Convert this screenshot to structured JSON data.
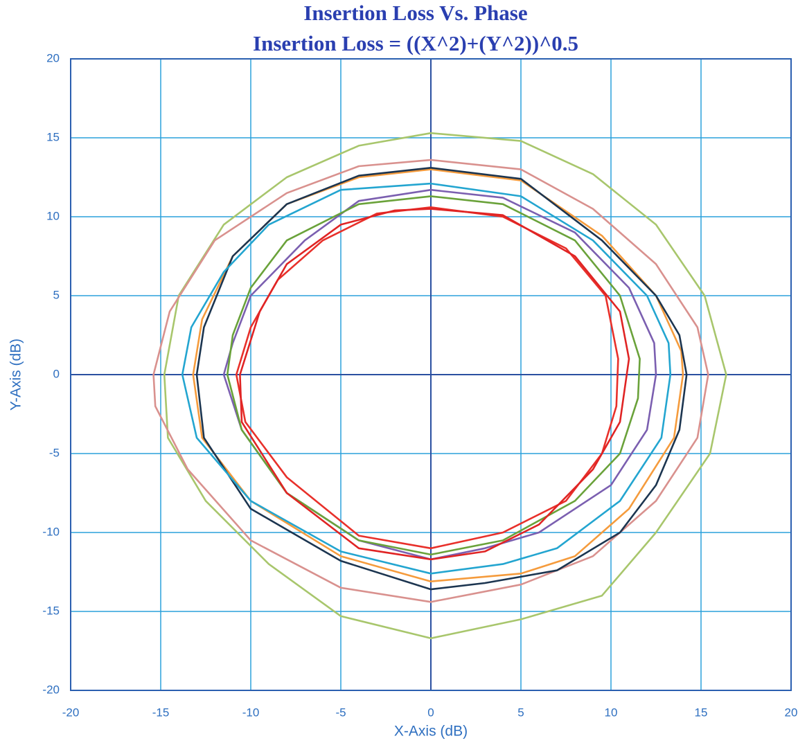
{
  "chart_data": {
    "type": "line",
    "title": "Insertion Loss Vs. Phase",
    "subtitle": "Insertion Loss = ((X^2)+(Y^2))^0.5",
    "x_label": "X-Axis (dB)",
    "y_label": "Y-Axis (dB)",
    "xlim": [
      -20,
      20
    ],
    "ylim": [
      -20,
      20
    ],
    "xticks": [
      -20,
      -15,
      -10,
      -5,
      0,
      5,
      10,
      15,
      20
    ],
    "yticks": [
      -20,
      -15,
      -10,
      -5,
      0,
      5,
      10,
      15,
      20
    ],
    "grid": true,
    "series": [
      {
        "color": "#a8c66c",
        "x": [
          0,
          5,
          9,
          12.5,
          15.2,
          16.4,
          15.5,
          12.5,
          9.5,
          5,
          0,
          -5,
          -9,
          -12.5,
          -14.6,
          -14.8,
          -14,
          -11.5,
          -8,
          -4,
          0
        ],
        "y": [
          15.3,
          14.8,
          12.7,
          9.5,
          5,
          0,
          -5,
          -10,
          -14,
          -15.5,
          -16.7,
          -15.3,
          -12,
          -8,
          -4,
          0,
          5,
          9.5,
          12.5,
          14.5,
          15.3
        ]
      },
      {
        "color": "#d9918e",
        "x": [
          0,
          5,
          9,
          12.5,
          14.8,
          15.4,
          14.8,
          12.5,
          9,
          5,
          0,
          -5,
          -10,
          -13.5,
          -15.3,
          -15.4,
          -14.5,
          -12,
          -8,
          -4,
          0
        ],
        "y": [
          13.6,
          13,
          10.5,
          7,
          3,
          0,
          -4,
          -8,
          -11.5,
          -13.3,
          -14.4,
          -13.5,
          -10.5,
          -6,
          -2,
          0,
          4,
          8.5,
          11.5,
          13.2,
          13.6
        ]
      },
      {
        "color": "#f59b3c",
        "x": [
          0,
          5,
          9.5,
          12.5,
          13.9,
          14,
          13.5,
          11,
          8,
          5,
          0,
          -5,
          -10,
          -12.7,
          -13.2,
          -12.7,
          -11,
          -8,
          -4,
          0
        ],
        "y": [
          13,
          12.3,
          8.8,
          5,
          1.5,
          0,
          -4,
          -8.5,
          -11.5,
          -12.6,
          -13.1,
          -11.5,
          -8,
          -4,
          0,
          3.5,
          7.5,
          10.8,
          12.5,
          13
        ]
      },
      {
        "color": "#1c3550",
        "x": [
          0,
          5,
          9.5,
          12.5,
          13.8,
          14.2,
          13.8,
          12.5,
          10.5,
          7,
          3,
          0,
          -5,
          -10,
          -12.6,
          -13,
          -12.6,
          -11,
          -8,
          -4,
          0
        ],
        "y": [
          13.1,
          12.4,
          8.5,
          5,
          2.5,
          0,
          -3.5,
          -7,
          -10,
          -12.4,
          -13.2,
          -13.6,
          -11.8,
          -8.5,
          -4,
          0,
          3,
          7.5,
          10.8,
          12.6,
          13.1
        ]
      },
      {
        "color": "#23a5d0",
        "x": [
          0,
          5,
          9,
          12,
          13.2,
          13.3,
          12.8,
          10.5,
          7,
          4,
          0,
          -5,
          -10,
          -13,
          -13.8,
          -13.3,
          -11.5,
          -9,
          -5,
          0
        ],
        "y": [
          12.1,
          11.3,
          8.5,
          5,
          2,
          0,
          -4,
          -8,
          -11,
          -12,
          -12.6,
          -11.2,
          -8,
          -4,
          0,
          3,
          6.5,
          9.5,
          11.7,
          12.1
        ]
      },
      {
        "color": "#7b5fb0",
        "x": [
          0,
          4,
          8,
          11,
          12.4,
          12.5,
          12,
          10,
          6,
          3,
          0,
          -4,
          -8,
          -10.5,
          -11.5,
          -11,
          -10,
          -7,
          -4,
          0
        ],
        "y": [
          11.7,
          11.2,
          9,
          5.5,
          2,
          0,
          -3.5,
          -7,
          -10,
          -11,
          -11.7,
          -10.5,
          -7.5,
          -3.5,
          0,
          2,
          5,
          8.5,
          11,
          11.7
        ]
      },
      {
        "color": "#6aa23a",
        "x": [
          0,
          4,
          8,
          10.5,
          11.6,
          11.5,
          10.5,
          8,
          4,
          0,
          -4,
          -8,
          -10.5,
          -11.3,
          -11,
          -10,
          -8,
          -4,
          0
        ],
        "y": [
          11.3,
          10.8,
          8.5,
          5,
          1,
          -1.5,
          -5,
          -8,
          -10.5,
          -11.4,
          -10.5,
          -7.5,
          -3.5,
          0,
          2.5,
          5.5,
          8.5,
          10.8,
          11.3
        ]
      },
      {
        "color": "#e8302a",
        "x": [
          0,
          4,
          7.5,
          9.7,
          10.4,
          10.3,
          9.5,
          7.5,
          4,
          0,
          -4,
          -8,
          -10.3,
          -10.8,
          -10,
          -8.5,
          -6,
          -3,
          0
        ],
        "y": [
          10.6,
          10,
          8,
          5,
          1,
          -2,
          -5,
          -8,
          -10,
          -11,
          -10.2,
          -6.5,
          -3,
          0,
          3,
          6,
          8.5,
          10.2,
          10.6
        ]
      },
      {
        "color": "#e02424",
        "x": [
          0,
          4,
          8,
          10.5,
          11,
          10.5,
          9,
          6,
          3,
          0,
          -4,
          -8,
          -10.5,
          -10.6,
          -9.5,
          -8,
          -5,
          -2,
          0
        ],
        "y": [
          10.5,
          10.1,
          7.5,
          4,
          1,
          -3,
          -6,
          -9.5,
          -11.2,
          -11.7,
          -11,
          -7.5,
          -3,
          0,
          4,
          7,
          9.5,
          10.4,
          10.5
        ]
      }
    ]
  }
}
